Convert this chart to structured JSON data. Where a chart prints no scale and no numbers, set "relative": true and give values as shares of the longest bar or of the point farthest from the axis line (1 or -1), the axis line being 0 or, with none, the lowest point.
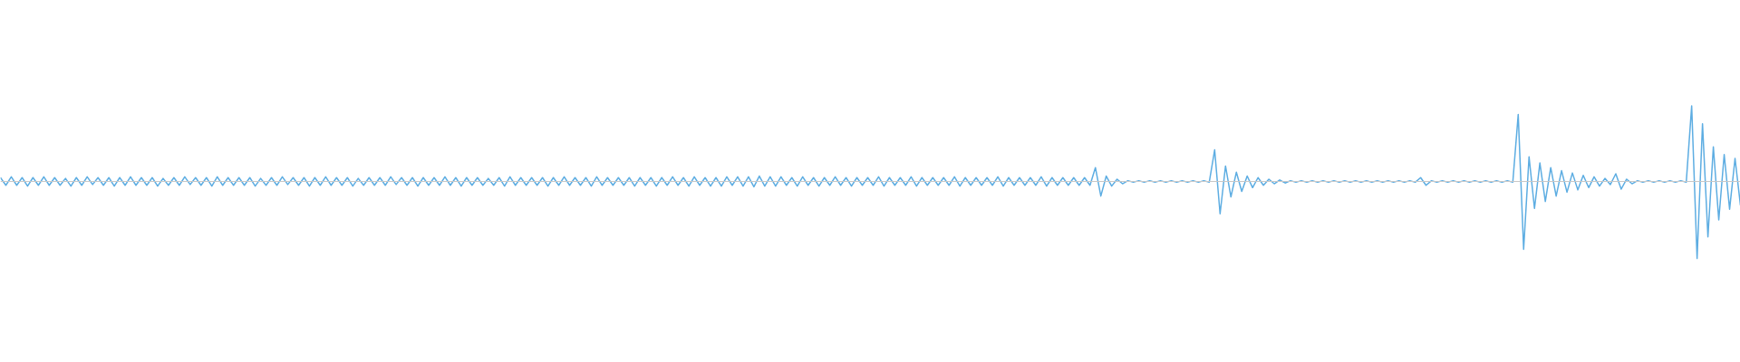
{
  "chart_data": {
    "type": "line",
    "relative": true,
    "categories": [
      null,
      null,
      null,
      null,
      null,
      null,
      null,
      null,
      null,
      null,
      null,
      null,
      null,
      null,
      null,
      null,
      null,
      null,
      null,
      null,
      null,
      null,
      null,
      null,
      null,
      null,
      null,
      null,
      null,
      null,
      null,
      null,
      null,
      null,
      null,
      null,
      null,
      null,
      null,
      null,
      null,
      null,
      null,
      null,
      null,
      null,
      null,
      null,
      null,
      null,
      null,
      null,
      null,
      null,
      null,
      null,
      null,
      null,
      null,
      null,
      null,
      null,
      null,
      null,
      null,
      null,
      null,
      null,
      null,
      null,
      null,
      null,
      null,
      null,
      null,
      null,
      null,
      null,
      null,
      null,
      null,
      null,
      null,
      null,
      null,
      null,
      null,
      null,
      null,
      null,
      null,
      null,
      null,
      null,
      null,
      null,
      null,
      null,
      null,
      null,
      null,
      null,
      null,
      null,
      null,
      null,
      null,
      null,
      null,
      null,
      null,
      null,
      null,
      null,
      null,
      null,
      null,
      null,
      null,
      null,
      null,
      null,
      null,
      null,
      null,
      null,
      null,
      null,
      null,
      null,
      null,
      null,
      null,
      null,
      null,
      null,
      null,
      null,
      null,
      null,
      null,
      null,
      null,
      null,
      null,
      null,
      null,
      null,
      null,
      null,
      null,
      null,
      null,
      null,
      null,
      null,
      null,
      null,
      null,
      null,
      null,
      null,
      null,
      null,
      null,
      null,
      null,
      null,
      null,
      null,
      null,
      null,
      null,
      null,
      null,
      null,
      null,
      null,
      null,
      null,
      null,
      null,
      null,
      null,
      null,
      null,
      null,
      null,
      null,
      null,
      null,
      null,
      null,
      null,
      null,
      null,
      null,
      null,
      null,
      null,
      null,
      null,
      null,
      null,
      null,
      null,
      null,
      null,
      null,
      null,
      null,
      null,
      null,
      null,
      null,
      null,
      null,
      null,
      null,
      null,
      null,
      null,
      null,
      null,
      null,
      null,
      null,
      null,
      null,
      null,
      null,
      null,
      null,
      null,
      null,
      null,
      null,
      null,
      null,
      null,
      null,
      null,
      null,
      null,
      null,
      null,
      null,
      null,
      null,
      null,
      null,
      null,
      null,
      null,
      null,
      null,
      null,
      null,
      null,
      null,
      null,
      null,
      null,
      null,
      null,
      null,
      null,
      null,
      null,
      null,
      null,
      null,
      null,
      null,
      null,
      null,
      null,
      null,
      null,
      null,
      null,
      null,
      null,
      null,
      null,
      null,
      null,
      null,
      null,
      null,
      null,
      null,
      null,
      null,
      null,
      null,
      null,
      null,
      null,
      null,
      null,
      null,
      null,
      null,
      null,
      null,
      null,
      null,
      null,
      null,
      null,
      null,
      null,
      null,
      null,
      null,
      null,
      null,
      null,
      null,
      null,
      null
    ],
    "series": [
      {
        "color": "#5dade2",
        "values": [
          0.05,
          -0.05,
          0.06,
          -0.05,
          0.05,
          -0.06,
          0.05,
          -0.05,
          0.06,
          -0.05,
          0.05,
          -0.05,
          0.04,
          -0.06,
          0.05,
          -0.05,
          0.06,
          -0.04,
          0.05,
          -0.05,
          0.05,
          -0.06,
          0.05,
          -0.05,
          0.06,
          -0.05,
          0.05,
          -0.05,
          0.05,
          -0.06,
          0.04,
          -0.05,
          0.05,
          -0.05,
          0.06,
          -0.04,
          0.05,
          -0.05,
          0.05,
          -0.06,
          0.06,
          -0.05,
          0.05,
          -0.05,
          0.05,
          -0.05,
          0.05,
          -0.06,
          0.04,
          -0.05,
          0.05,
          -0.05,
          0.06,
          -0.04,
          0.05,
          -0.05,
          0.05,
          -0.06,
          0.05,
          -0.05,
          0.06,
          -0.05,
          0.05,
          -0.05,
          0.05,
          -0.06,
          0.04,
          -0.05,
          0.05,
          -0.05,
          0.05,
          -0.05,
          0.06,
          -0.04,
          0.05,
          -0.05,
          0.05,
          -0.06,
          0.05,
          -0.05,
          0.05,
          -0.05,
          0.06,
          -0.05,
          0.05,
          -0.06,
          0.05,
          -0.05,
          0.05,
          -0.05,
          0.04,
          -0.05,
          0.05,
          -0.06,
          0.06,
          -0.05,
          0.05,
          -0.05,
          0.05,
          -0.05,
          0.05,
          -0.06,
          0.05,
          -0.05,
          0.06,
          -0.05,
          0.05,
          -0.05,
          0.05,
          -0.06,
          0.06,
          -0.05,
          0.05,
          -0.05,
          0.05,
          -0.05,
          0.05,
          -0.06,
          0.05,
          -0.05,
          0.05,
          -0.06,
          0.05,
          -0.05,
          0.06,
          -0.05,
          0.05,
          -0.06,
          0.06,
          -0.05,
          0.05,
          -0.06,
          0.05,
          -0.06,
          0.06,
          -0.05,
          0.06,
          -0.06,
          0.06,
          -0.07,
          0.07,
          -0.06,
          0.06,
          -0.06,
          0.06,
          -0.05,
          0.05,
          -0.06,
          0.06,
          -0.05,
          0.05,
          -0.06,
          0.05,
          -0.05,
          0.06,
          -0.05,
          0.05,
          -0.06,
          0.05,
          -0.05,
          0.05,
          -0.05,
          0.06,
          -0.06,
          0.05,
          -0.05,
          0.05,
          -0.05,
          0.06,
          -0.06,
          0.05,
          -0.05,
          0.05,
          -0.05,
          0.05,
          -0.05,
          0.06,
          -0.06,
          0.05,
          -0.05,
          0.05,
          -0.05,
          0.05,
          -0.05,
          0.06,
          -0.06,
          0.05,
          -0.05,
          0.05,
          -0.05,
          0.05,
          -0.05,
          0.06,
          -0.06,
          0.05,
          -0.05,
          0.05,
          -0.05,
          0.05,
          -0.05,
          0.05,
          -0.05,
          0.18,
          -0.19,
          0.07,
          -0.06,
          0.03,
          -0.03,
          0.01,
          -0.01,
          0.01,
          -0.01,
          0.01,
          -0.01,
          0.01,
          -0.01,
          0.01,
          -0.01,
          0.01,
          -0.01,
          0.01,
          -0.01,
          0.01,
          -0.01,
          0.41,
          -0.42,
          0.2,
          -0.2,
          0.12,
          -0.13,
          0.07,
          -0.08,
          0.05,
          -0.05,
          0.03,
          -0.03,
          0.02,
          -0.02,
          0.01,
          -0.01,
          0.01,
          -0.01,
          0.01,
          -0.01,
          0.01,
          -0.01,
          0.01,
          -0.01,
          0.01,
          -0.01,
          0.01,
          -0.01,
          0.01,
          -0.01,
          0.01,
          -0.01,
          0.01,
          -0.01,
          0.01,
          -0.01,
          0.01,
          -0.01,
          0.05,
          -0.05,
          0.01,
          -0.01,
          0.01,
          -0.01,
          0.01,
          -0.01,
          0.01,
          -0.01,
          0.01,
          -0.01,
          0.01,
          -0.01,
          0.01,
          -0.01,
          0.01,
          -0.01,
          0.87,
          -0.88,
          0.32,
          -0.35,
          0.24,
          -0.26,
          0.18,
          -0.19,
          0.14,
          -0.14,
          0.11,
          -0.11,
          0.08,
          -0.08,
          0.06,
          -0.06,
          0.04,
          -0.04,
          0.1,
          -0.1,
          0.03,
          -0.03,
          0.01,
          -0.01,
          0.01,
          -0.01,
          0.01,
          -0.01,
          0.01,
          -0.01,
          0.01,
          -0.01,
          0.98,
          -1,
          0.75,
          -0.72,
          0.45,
          -0.5,
          0.35,
          -0.36,
          0.3,
          -0.31
        ]
      }
    ]
  }
}
